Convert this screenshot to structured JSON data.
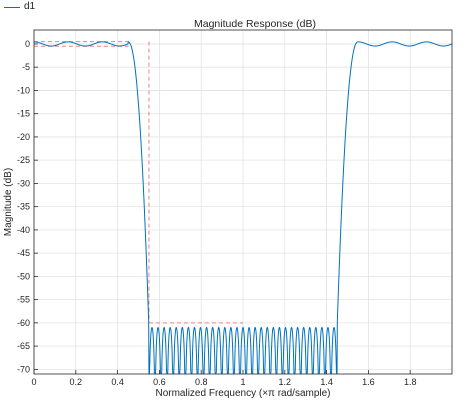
{
  "legend": {
    "items": [
      {
        "label": "d1",
        "color": "#0072bd"
      }
    ]
  },
  "chart_data": {
    "type": "line",
    "title": "Magnitude Response (dB)",
    "xlabel": "Normalized Frequency (×π rad/sample)",
    "ylabel": "Magnitude (dB)",
    "xlim": [
      0,
      2
    ],
    "ylim": [
      -71,
      3
    ],
    "x_ticks": [
      0,
      0.2,
      0.4,
      0.6,
      0.8,
      1,
      1.2,
      1.4,
      1.6,
      1.8
    ],
    "x_tick_labels": [
      "0",
      "0.2",
      "0.4",
      "0.6",
      "0.8",
      "1",
      "1.2",
      "1.4",
      "1.6",
      "1.8"
    ],
    "y_ticks": [
      0,
      -5,
      -10,
      -15,
      -20,
      -25,
      -30,
      -35,
      -40,
      -45,
      -50,
      -55,
      -60,
      -65,
      -70
    ],
    "y_tick_labels": [
      "0",
      "-5",
      "-10",
      "-15",
      "-20",
      "-25",
      "-30",
      "-35",
      "-40",
      "-45",
      "-50",
      "-55",
      "-60",
      "-65",
      "-70"
    ],
    "grid": true,
    "series": [
      {
        "name": "d1",
        "color": "#0072bd",
        "passband_1": [
          0,
          0.45
        ],
        "stopband": [
          0.55,
          1.45
        ],
        "passband_2": [
          1.55,
          2
        ],
        "passband_ripple_db": 0.5,
        "stopband_floor_db": -61,
        "stopband_ripple_count": 31
      }
    ],
    "spec_mask": {
      "color": "#f08080",
      "style": "dashed",
      "passband": {
        "x": [
          0,
          0.45,
          0.45,
          0
        ],
        "y": [
          0.5,
          0.5,
          -0.5,
          -0.5
        ]
      },
      "transition_edge_x": 0.55,
      "stopband": {
        "x": [
          0.55,
          1
        ],
        "y": -60
      }
    }
  }
}
